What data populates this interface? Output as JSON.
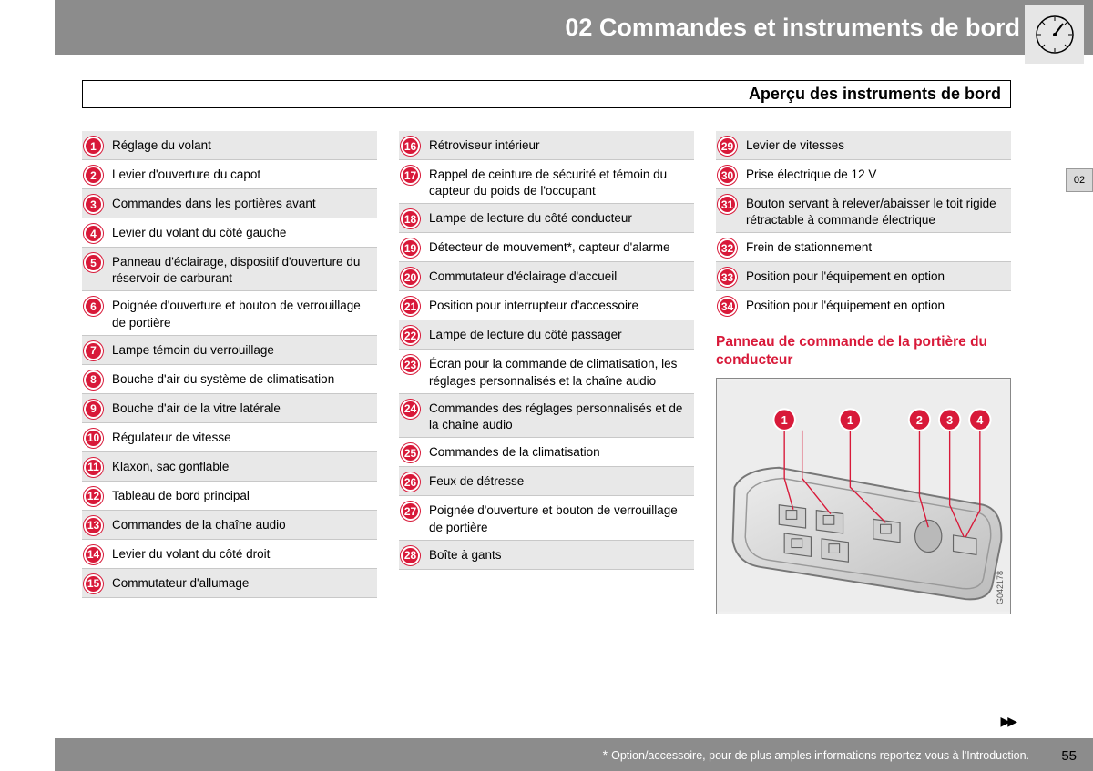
{
  "header": {
    "title": "02 Commandes et instruments de bord"
  },
  "subtitle": "Aperçu des instruments de bord",
  "tab_label": "02",
  "page_number": "55",
  "footer_note": "Option/accessoire, pour de plus amples informations reportez-vous à l'Introduction.",
  "continue_indicator": "▶▶",
  "section_heading": "Panneau de commande de la portière du conducteur",
  "image_code": "G042178",
  "column1": [
    {
      "n": "1",
      "t": "Réglage du volant"
    },
    {
      "n": "2",
      "t": "Levier d'ouverture du capot"
    },
    {
      "n": "3",
      "t": "Commandes dans les portières avant"
    },
    {
      "n": "4",
      "t": "Levier du volant du côté gauche"
    },
    {
      "n": "5",
      "t": "Panneau d'éclairage, dispositif d'ouverture du réservoir de carburant"
    },
    {
      "n": "6",
      "t": "Poignée d'ouverture et bouton de verrouillage de portière"
    },
    {
      "n": "7",
      "t": "Lampe témoin du verrouillage"
    },
    {
      "n": "8",
      "t": "Bouche d'air du système de climatisation"
    },
    {
      "n": "9",
      "t": "Bouche d'air de la vitre latérale"
    },
    {
      "n": "10",
      "t": "Régulateur de vitesse"
    },
    {
      "n": "11",
      "t": "Klaxon, sac gonflable"
    },
    {
      "n": "12",
      "t": "Tableau de bord principal"
    },
    {
      "n": "13",
      "t": "Commandes de la chaîne audio"
    },
    {
      "n": "14",
      "t": "Levier du volant du côté droit"
    },
    {
      "n": "15",
      "t": "Commutateur d'allumage"
    }
  ],
  "column2": [
    {
      "n": "16",
      "t": "Rétroviseur intérieur"
    },
    {
      "n": "17",
      "t": "Rappel de ceinture de sécurité et témoin du capteur du poids de l'occupant"
    },
    {
      "n": "18",
      "t": "Lampe de lecture du côté conducteur"
    },
    {
      "n": "19",
      "t": "Détecteur de mouvement*, capteur d'alarme"
    },
    {
      "n": "20",
      "t": "Commutateur d'éclairage d'accueil"
    },
    {
      "n": "21",
      "t": "Position pour interrupteur d'accessoire"
    },
    {
      "n": "22",
      "t": "Lampe de lecture du côté passager"
    },
    {
      "n": "23",
      "t": "Écran pour la commande de climatisation, les réglages personnalisés et la chaîne audio"
    },
    {
      "n": "24",
      "t": "Commandes des réglages personnalisés et de la chaîne audio"
    },
    {
      "n": "25",
      "t": "Commandes de la climatisation"
    },
    {
      "n": "26",
      "t": "Feux de détresse"
    },
    {
      "n": "27",
      "t": "Poignée d'ouverture et bouton de verrouillage de portière"
    },
    {
      "n": "28",
      "t": "Boîte à gants"
    }
  ],
  "column3": [
    {
      "n": "29",
      "t": "Levier de vitesses"
    },
    {
      "n": "30",
      "t": "Prise électrique de 12 V"
    },
    {
      "n": "31",
      "t": "Bouton servant à relever/abaisser le toit rigide rétractable à commande électrique"
    },
    {
      "n": "32",
      "t": "Frein de stationnement"
    },
    {
      "n": "33",
      "t": "Position pour l'équipement en option"
    },
    {
      "n": "34",
      "t": "Position pour l'équipement en option"
    }
  ],
  "callouts": [
    "1",
    "1",
    "2",
    "3",
    "4"
  ],
  "colors": {
    "accent": "#d81939",
    "header_bg": "#8c8c8c",
    "stripe": "#e8e8e8"
  }
}
